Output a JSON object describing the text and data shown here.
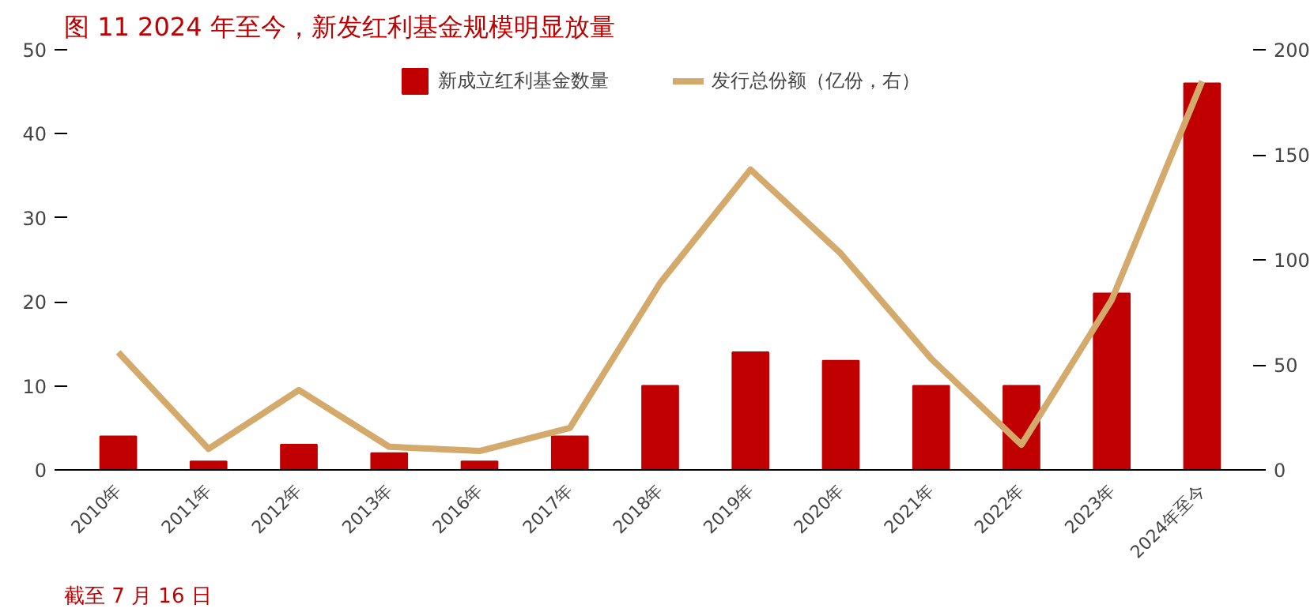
{
  "chart_data": {
    "type": "bar",
    "title": "图 11  2024 年至今，新发红利基金规模明显放量",
    "categories": [
      "2010年",
      "2011年",
      "2012年",
      "2013年",
      "2016年",
      "2017年",
      "2018年",
      "2019年",
      "2020年",
      "2021年",
      "2022年",
      "2023年",
      "2024年至今"
    ],
    "series": [
      {
        "name": "新成立红利基金数量",
        "color": "#c00000",
        "values": [
          4,
          1,
          3,
          2,
          1,
          4,
          10,
          14,
          13,
          10,
          10,
          21,
          46
        ]
      },
      {
        "name": "发行总份额（亿份，右）",
        "type": "line",
        "axis": "y2",
        "color": "#d4aa6c",
        "values": [
          56,
          10,
          38,
          11,
          9,
          20,
          89,
          143,
          103,
          53,
          12,
          81,
          185
        ]
      }
    ],
    "ylim": [
      0,
      50
    ],
    "yticks": [
      0,
      10,
      20,
      30,
      40,
      50
    ],
    "y2lim": [
      0,
      200
    ],
    "y2ticks": [
      0,
      50,
      100,
      150,
      200
    ],
    "grid": false,
    "legend": "top",
    "marker": "none",
    "line_style": "solid",
    "annotations": [
      "截至 7 月 16 日"
    ]
  }
}
